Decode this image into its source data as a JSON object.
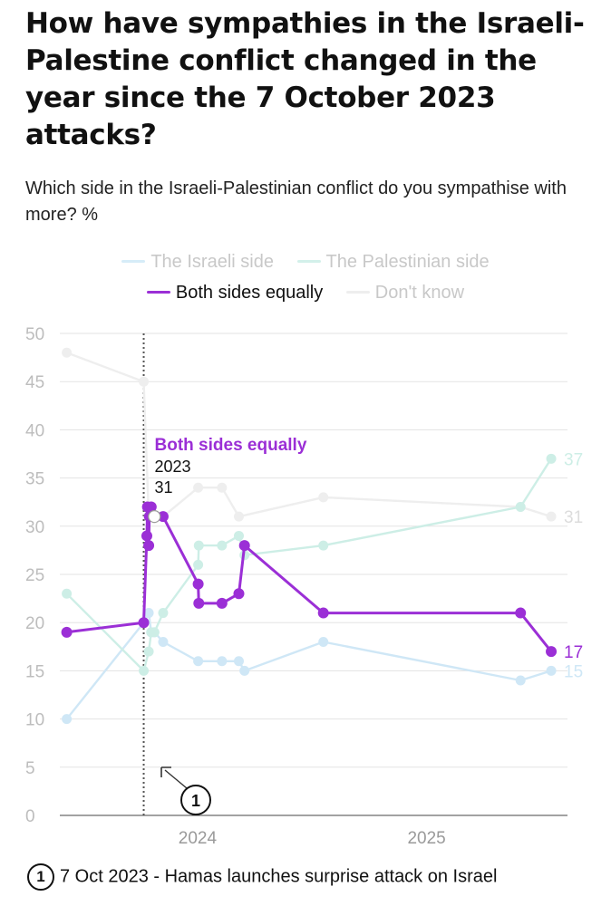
{
  "title": "How have sympathies in the Israeli-Palestine conflict changed in the year since the 7 October 2023 attacks?",
  "subtitle": "Which side in the Israeli-Palestinian conflict do you sympathise with more? %",
  "legend": [
    {
      "label": "The Israeli side",
      "color": "#d6ecf8",
      "active": false
    },
    {
      "label": "The Palestinian side",
      "color": "#d3f0ea",
      "active": false
    },
    {
      "label": "Both sides equally",
      "color": "#9b2fd6",
      "active": true
    },
    {
      "label": "Don't know",
      "color": "#eeeeee",
      "active": false
    }
  ],
  "chart_data": {
    "type": "line",
    "ylim": [
      0,
      50
    ],
    "yticks": [
      0,
      5,
      10,
      15,
      20,
      25,
      30,
      35,
      40,
      45,
      50
    ],
    "xlim": [
      "2023-05-26",
      "2025-08-14"
    ],
    "xticks": [
      {
        "date": "2024-01-01",
        "label": "2024"
      },
      {
        "date": "2025-01-01",
        "label": "2025"
      }
    ],
    "grid": true,
    "series": [
      {
        "name": "The Israeli side",
        "color": "#cfe7f6",
        "points": [
          [
            "2023-06-06",
            10
          ],
          [
            "2023-10-07",
            20
          ],
          [
            "2023-10-15",
            21
          ],
          [
            "2023-10-19",
            19
          ],
          [
            "2023-10-24",
            19
          ],
          [
            "2023-11-07",
            18
          ],
          [
            "2024-01-02",
            16
          ],
          [
            "2024-02-09",
            16
          ],
          [
            "2024-03-07",
            16
          ],
          [
            "2024-03-16",
            15
          ],
          [
            "2024-07-20",
            18
          ],
          [
            "2025-05-31",
            14
          ],
          [
            "2025-07-19",
            15
          ]
        ]
      },
      {
        "name": "The Palestinian side",
        "color": "#cdeee6",
        "points": [
          [
            "2023-06-06",
            23
          ],
          [
            "2023-10-07",
            15
          ],
          [
            "2023-10-15",
            17
          ],
          [
            "2023-10-19",
            19
          ],
          [
            "2023-10-24",
            19
          ],
          [
            "2023-11-07",
            21
          ],
          [
            "2024-01-02",
            26
          ],
          [
            "2024-01-03",
            28
          ],
          [
            "2024-02-09",
            28
          ],
          [
            "2024-03-07",
            29
          ],
          [
            "2024-03-16",
            27
          ],
          [
            "2024-07-20",
            28
          ],
          [
            "2025-05-31",
            32
          ],
          [
            "2025-07-19",
            37
          ]
        ]
      },
      {
        "name": "Both sides equally",
        "color": "#9b2fd6",
        "points": [
          [
            "2023-06-06",
            19
          ],
          [
            "2023-10-07",
            20
          ],
          [
            "2023-10-12",
            29
          ],
          [
            "2023-10-13",
            32
          ],
          [
            "2023-10-15",
            28
          ],
          [
            "2023-10-16",
            31
          ],
          [
            "2023-10-19",
            32
          ],
          [
            "2023-10-24",
            31
          ],
          [
            "2023-11-07",
            31
          ],
          [
            "2024-01-02",
            24
          ],
          [
            "2024-01-03",
            22
          ],
          [
            "2024-02-09",
            22
          ],
          [
            "2024-03-07",
            23
          ],
          [
            "2024-03-16",
            28
          ],
          [
            "2024-07-20",
            21
          ],
          [
            "2025-05-31",
            21
          ],
          [
            "2025-07-19",
            17
          ]
        ]
      },
      {
        "name": "Don't know",
        "color": "#eeeeee",
        "points": [
          [
            "2023-06-06",
            48
          ],
          [
            "2023-10-07",
            45
          ],
          [
            "2023-10-15",
            31
          ],
          [
            "2023-10-24",
            31
          ],
          [
            "2023-11-07",
            31
          ],
          [
            "2024-01-02",
            34
          ],
          [
            "2024-02-09",
            34
          ],
          [
            "2024-03-07",
            31
          ],
          [
            "2024-07-20",
            33
          ],
          [
            "2025-05-31",
            32
          ],
          [
            "2025-07-19",
            31
          ]
        ]
      }
    ],
    "end_labels": [
      {
        "series": "The Palestinian side",
        "label": "37"
      },
      {
        "series": "Don't know",
        "label": "31"
      },
      {
        "series": "Both sides equally",
        "label": "17"
      },
      {
        "series": "The Israeli side",
        "label": "15"
      }
    ],
    "tooltip": {
      "series": "Both sides equally",
      "title": "Both sides equally",
      "x_label": "2023",
      "value_label": "31",
      "date": "2023-10-24"
    },
    "annotations": [
      {
        "date": "2023-10-07",
        "number": "1",
        "text": "7 Oct 2023 - Hamas launches surprise attack on Israel"
      }
    ]
  }
}
